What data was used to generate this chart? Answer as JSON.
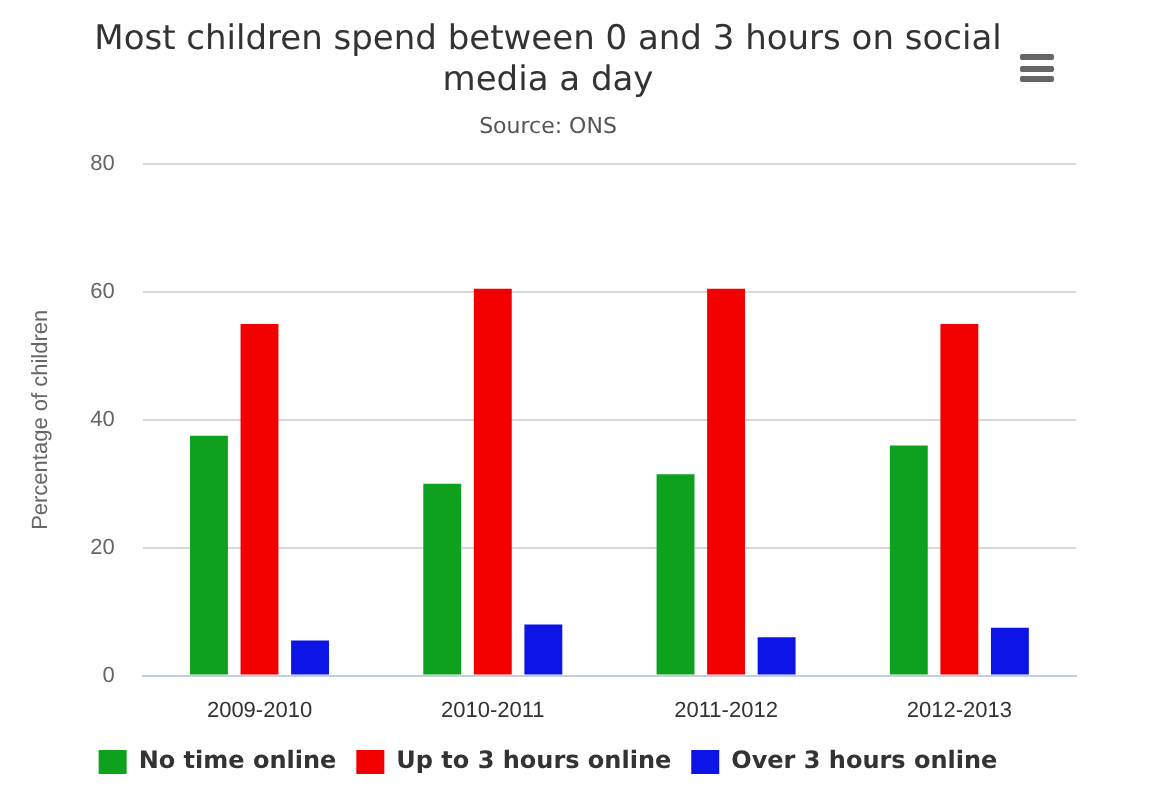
{
  "chart_data": {
    "type": "bar",
    "title": "Most children spend between 0 and 3 hours on social media a day",
    "subtitle": "Source: ONS",
    "ylabel": "Percentage of children",
    "categories": [
      "2009-2010",
      "2010-2011",
      "2011-2012",
      "2012-2013"
    ],
    "series": [
      {
        "name": "No time online",
        "color": "#0ea11e",
        "values": [
          37.5,
          30,
          31.5,
          36
        ]
      },
      {
        "name": "Up to 3 hours online",
        "color": "#f20000",
        "values": [
          55,
          60.5,
          60.5,
          55
        ]
      },
      {
        "name": "Over 3 hours online",
        "color": "#0c14e6",
        "values": [
          5.5,
          8,
          6,
          7.5
        ]
      }
    ],
    "ylim": [
      0,
      80
    ],
    "yticks": [
      0,
      20,
      40,
      60,
      80
    ],
    "grid": "y",
    "legend": "bottom"
  }
}
